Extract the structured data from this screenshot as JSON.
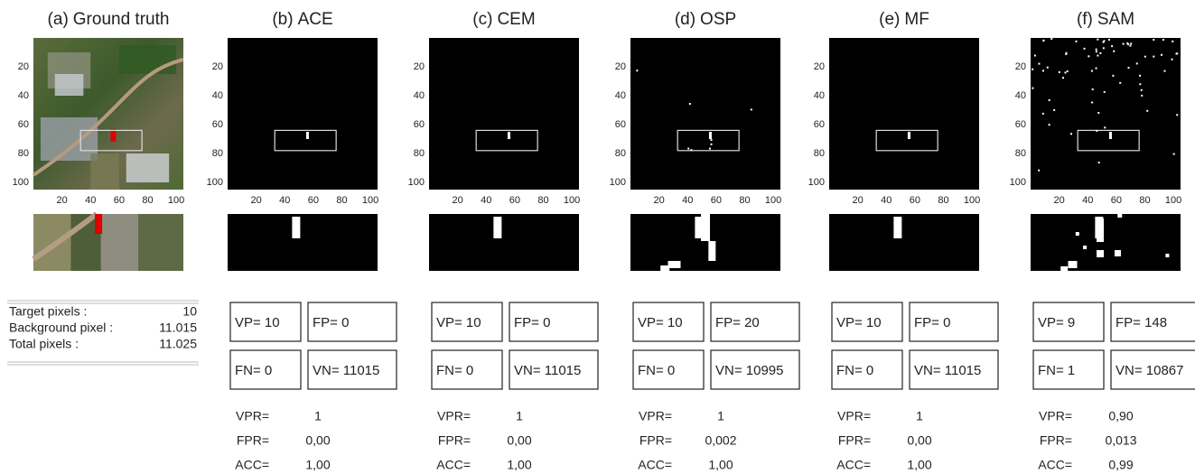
{
  "panels": [
    {
      "label": "(a)",
      "title": "Ground truth",
      "xticks": [
        20,
        40,
        60,
        80,
        100
      ],
      "yticks": [
        20,
        40,
        60,
        80,
        100
      ]
    },
    {
      "label": "(b)",
      "title": "ACE",
      "xticks": [
        20,
        40,
        60,
        80,
        100
      ],
      "yticks": [
        20,
        40,
        60,
        80,
        100
      ],
      "matrix": [
        "VP= 10",
        "FP= 0",
        "FN= 0",
        "VN= 11015"
      ],
      "metrics": [
        {
          "name": "VPR=",
          "value": "1"
        },
        {
          "name": "FPR=",
          "value": "0,00"
        },
        {
          "name": "ACC=",
          "value": "1,00"
        }
      ]
    },
    {
      "label": "(c)",
      "title": "CEM",
      "xticks": [
        20,
        40,
        60,
        80,
        100
      ],
      "yticks": [
        20,
        40,
        60,
        80,
        100
      ],
      "matrix": [
        "VP= 10",
        "FP= 0",
        "FN= 0",
        "VN= 11015"
      ],
      "metrics": [
        {
          "name": "VPR=",
          "value": "1"
        },
        {
          "name": "FPR=",
          "value": "0,00"
        },
        {
          "name": "ACC=",
          "value": "1,00"
        }
      ]
    },
    {
      "label": "(d)",
      "title": "OSP",
      "xticks": [
        20,
        40,
        60,
        80,
        100
      ],
      "yticks": [
        20,
        40,
        60,
        80,
        100
      ],
      "matrix": [
        "VP= 10",
        "FP= 20",
        "FN= 0",
        "VN= 10995"
      ],
      "metrics": [
        {
          "name": "VPR=",
          "value": "1"
        },
        {
          "name": "FPR=",
          "value": "0,002"
        },
        {
          "name": "ACC=",
          "value": "1,00"
        }
      ]
    },
    {
      "label": "(e)",
      "title": "MF",
      "xticks": [
        20,
        40,
        60,
        80,
        100
      ],
      "yticks": [
        20,
        40,
        60,
        80,
        100
      ],
      "matrix": [
        "VP= 10",
        "FP= 0",
        "FN= 0",
        "VN= 11015"
      ],
      "metrics": [
        {
          "name": "VPR=",
          "value": "1"
        },
        {
          "name": "FPR=",
          "value": "0,00"
        },
        {
          "name": "ACC=",
          "value": "1,00"
        }
      ]
    },
    {
      "label": "(f)",
      "title": "SAM",
      "xticks": [
        20,
        40,
        60,
        80,
        100
      ],
      "yticks": [
        20,
        40,
        60,
        80,
        100
      ],
      "matrix": [
        "VP= 9",
        "FP= 148",
        "FN= 1",
        "VN= 10867"
      ],
      "metrics": [
        {
          "name": "VPR=",
          "value": "0,90"
        },
        {
          "name": "FPR=",
          "value": "0,013"
        },
        {
          "name": "ACC=",
          "value": "0,99"
        }
      ]
    }
  ],
  "ground_truth_stats": [
    {
      "label": "Target pixels :",
      "value": "10"
    },
    {
      "label": "Background pixel :",
      "value": "11.015"
    },
    {
      "label": "Total pixels :",
      "value": "11.025"
    }
  ]
}
